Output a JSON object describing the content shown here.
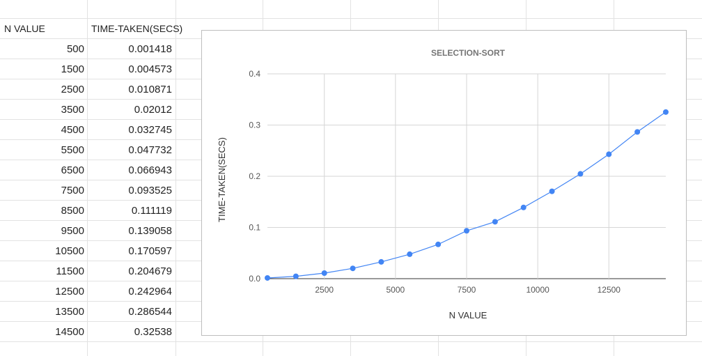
{
  "sheet": {
    "headers": [
      "N VALUE",
      "TIME-TAKEN(SECS)"
    ],
    "rows": [
      {
        "n": "500",
        "t": "0.001418"
      },
      {
        "n": "1500",
        "t": "0.004573"
      },
      {
        "n": "2500",
        "t": "0.010871"
      },
      {
        "n": "3500",
        "t": "0.02012"
      },
      {
        "n": "4500",
        "t": "0.032745"
      },
      {
        "n": "5500",
        "t": "0.047732"
      },
      {
        "n": "6500",
        "t": "0.066943"
      },
      {
        "n": "7500",
        "t": "0.093525"
      },
      {
        "n": "8500",
        "t": "0.111119"
      },
      {
        "n": "9500",
        "t": "0.139058"
      },
      {
        "n": "10500",
        "t": "0.170597"
      },
      {
        "n": "11500",
        "t": "0.204679"
      },
      {
        "n": "12500",
        "t": "0.242964"
      },
      {
        "n": "13500",
        "t": "0.286544"
      },
      {
        "n": "14500",
        "t": "0.32538"
      }
    ]
  },
  "chart_data": {
    "type": "line",
    "title": "SELECTION-SORT",
    "xlabel": "N VALUE",
    "ylabel": "TIME-TAKEN(SECS)",
    "x": [
      500,
      1500,
      2500,
      3500,
      4500,
      5500,
      6500,
      7500,
      8500,
      9500,
      10500,
      11500,
      12500,
      13500,
      14500
    ],
    "series": [
      {
        "values": [
          0.001418,
          0.004573,
          0.010871,
          0.02012,
          0.032745,
          0.047732,
          0.066943,
          0.093525,
          0.111119,
          0.139058,
          0.170597,
          0.204679,
          0.242964,
          0.286544,
          0.32538
        ]
      }
    ],
    "xlim": [
      500,
      14500
    ],
    "ylim": [
      0,
      0.4
    ],
    "xticks": [
      2500,
      5000,
      7500,
      10000,
      12500
    ],
    "yticks": [
      "0.0",
      "0.1",
      "0.2",
      "0.3",
      "0.4"
    ],
    "grid": true,
    "legend": "none",
    "line_color": "#4285f4"
  }
}
